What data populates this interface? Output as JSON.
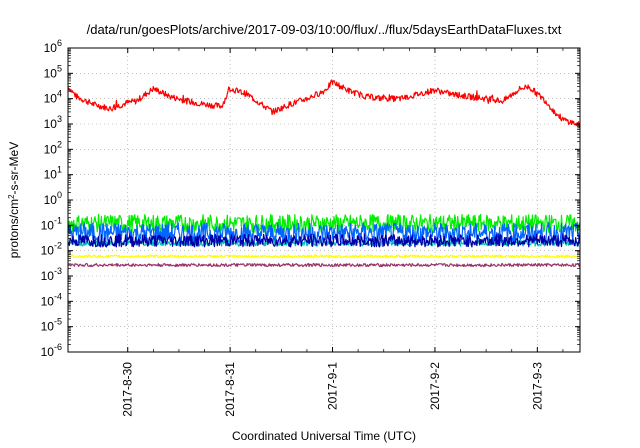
{
  "chart_data": {
    "type": "line",
    "title": "/data/run/goesPlots/archive/2017-09-03/10:00/flux/../flux/5daysEarthDataFluxes.txt",
    "xlabel": "Coordinated Universal Time (UTC)",
    "ylabel_parts": [
      "protons/cm",
      "2",
      "-s-sr-MeV"
    ],
    "y_scale": "log",
    "ylim": [
      1e-06,
      1000000.0
    ],
    "y_ticks": [
      {
        "base": "10",
        "exp": "-6",
        "value": -6
      },
      {
        "base": "10",
        "exp": "-5",
        "value": -5
      },
      {
        "base": "10",
        "exp": "-4",
        "value": -4
      },
      {
        "base": "10",
        "exp": "-3",
        "value": -3
      },
      {
        "base": "10",
        "exp": "-2",
        "value": -2
      },
      {
        "base": "10",
        "exp": "-1",
        "value": -1
      },
      {
        "base": "10",
        "exp": "0",
        "value": 0
      },
      {
        "base": "10",
        "exp": "1",
        "value": 1
      },
      {
        "base": "10",
        "exp": "2",
        "value": 2
      },
      {
        "base": "10",
        "exp": "3",
        "value": 3
      },
      {
        "base": "10",
        "exp": "4",
        "value": 4
      },
      {
        "base": "10",
        "exp": "5",
        "value": 5
      },
      {
        "base": "10",
        "exp": "6",
        "value": 6
      }
    ],
    "xlim": [
      "2017-08-29T10:00",
      "2017-09-03T10:00"
    ],
    "x_ticks": [
      {
        "label": "2017-8-30",
        "value": "2017-08-30T00:00"
      },
      {
        "label": "2017-8-31",
        "value": "2017-08-31T00:00"
      },
      {
        "label": "2017-9-1",
        "value": "2017-09-01T00:00"
      },
      {
        "label": "2017-9-2",
        "value": "2017-09-02T00:00"
      },
      {
        "label": "2017-9-3",
        "value": "2017-09-03T00:00"
      }
    ],
    "grid": true,
    "noise_seed": 7,
    "series": [
      {
        "color": "#ff0000",
        "noise": 0.12,
        "points": [
          [
            "2017-08-29T10:00",
            30000
          ],
          [
            "2017-08-29T12:00",
            12000
          ],
          [
            "2017-08-29T16:00",
            6000
          ],
          [
            "2017-08-29T20:00",
            4000
          ],
          [
            "2017-08-30T00:00",
            7000
          ],
          [
            "2017-08-30T02:00",
            8000
          ],
          [
            "2017-08-30T06:00",
            25000
          ],
          [
            "2017-08-30T10:00",
            12000
          ],
          [
            "2017-08-30T14:00",
            8000
          ],
          [
            "2017-08-30T18:00",
            6000
          ],
          [
            "2017-08-30T22:00",
            5000
          ],
          [
            "2017-08-31T00:00",
            25000
          ],
          [
            "2017-08-31T04:00",
            15000
          ],
          [
            "2017-08-31T08:00",
            5000
          ],
          [
            "2017-08-31T10:00",
            3000
          ],
          [
            "2017-08-31T14:00",
            6000
          ],
          [
            "2017-08-31T18:00",
            10000
          ],
          [
            "2017-08-31T22:00",
            20000
          ],
          [
            "2017-09-01T00:00",
            45000
          ],
          [
            "2017-09-01T04:00",
            20000
          ],
          [
            "2017-09-01T08:00",
            12000
          ],
          [
            "2017-09-01T12:00",
            10000
          ],
          [
            "2017-09-01T16:00",
            10000
          ],
          [
            "2017-09-01T20:00",
            15000
          ],
          [
            "2017-09-02T00:00",
            22000
          ],
          [
            "2017-09-02T04:00",
            15000
          ],
          [
            "2017-09-02T08:00",
            12000
          ],
          [
            "2017-09-02T12:00",
            10000
          ],
          [
            "2017-09-02T16:00",
            8000
          ],
          [
            "2017-09-02T20:00",
            25000
          ],
          [
            "2017-09-02T22:00",
            30000
          ],
          [
            "2017-09-03T02:00",
            8000
          ],
          [
            "2017-09-03T04:00",
            3000
          ],
          [
            "2017-09-03T06:00",
            1500
          ],
          [
            "2017-09-03T10:00",
            900
          ]
        ]
      },
      {
        "color": "#00ee00",
        "noise": 0.35,
        "points": [
          [
            "2017-08-29T10:00",
            0.12
          ],
          [
            "2017-09-03T10:00",
            0.12
          ]
        ]
      },
      {
        "color": "#0066ff",
        "noise": 0.4,
        "points": [
          [
            "2017-08-29T10:00",
            0.05
          ],
          [
            "2017-09-03T10:00",
            0.05
          ]
        ]
      },
      {
        "color": "#00bbbb",
        "noise": 0.12,
        "points": [
          [
            "2017-08-29T10:00",
            0.02
          ],
          [
            "2017-09-03T10:00",
            0.02
          ]
        ]
      },
      {
        "color": "#0000aa",
        "noise": 0.25,
        "points": [
          [
            "2017-08-29T10:00",
            0.025
          ],
          [
            "2017-09-03T10:00",
            0.025
          ]
        ]
      },
      {
        "color": "#ffff00",
        "noise": 0.05,
        "points": [
          [
            "2017-08-29T10:00",
            0.006
          ],
          [
            "2017-09-03T10:00",
            0.006
          ]
        ]
      },
      {
        "color": "#993366",
        "noise": 0.06,
        "points": [
          [
            "2017-08-29T10:00",
            0.0027
          ],
          [
            "2017-09-03T10:00",
            0.0027
          ]
        ]
      }
    ]
  }
}
